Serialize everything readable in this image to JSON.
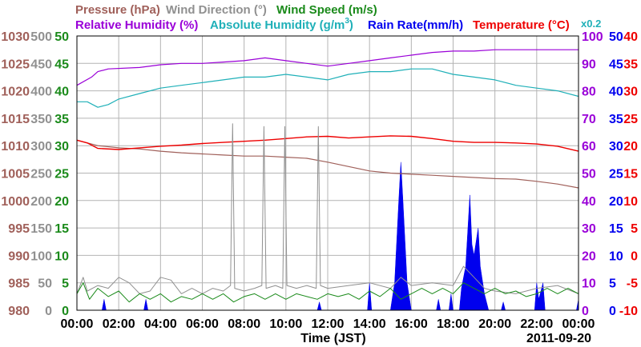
{
  "chart_data": {
    "type": "line",
    "xlabel": "Time (JST)",
    "date_label": "2011-09-20",
    "x_ticks": [
      "00:00",
      "02:00",
      "04:00",
      "06:00",
      "08:00",
      "10:00",
      "12:00",
      "14:00",
      "16:00",
      "18:00",
      "20:00",
      "22:00",
      "00:00"
    ],
    "x_range_hours": [
      0,
      24
    ],
    "colors": {
      "pressure": "#a0605a",
      "wind_direction": "#909090",
      "wind_speed": "#1a8a1a",
      "relative_humidity": "#9a00d8",
      "absolute_humidity": "#1fb0b8",
      "rain_rate": "#0000ee",
      "temperature": "#ee0000",
      "grid": "#b4b4b4"
    },
    "legend": {
      "pressure": "Pressure (hPa)",
      "wind_direction": "Wind Direction (°)",
      "wind_speed": "Wind Speed (m/s)",
      "relative_humidity": "Relative Humidity (%)",
      "absolute_humidity": "Absolute Humidity (g/m",
      "absolute_humidity_sup": "3",
      "absolute_humidity_end": ")",
      "rain_rate": "Rain Rate(mm/h)",
      "temperature": "Temperature (°C)",
      "rain_scale": "x0.2"
    },
    "axes": {
      "pressure": {
        "range": [
          980,
          1030
        ],
        "ticks": [
          "1030",
          "1025",
          "1020",
          "1015",
          "1010",
          "1005",
          "1000",
          "995",
          "990",
          "985",
          "980"
        ]
      },
      "wind_direction": {
        "range": [
          0,
          500
        ],
        "ticks": [
          "500",
          "450",
          "400",
          "350",
          "300",
          "250",
          "200",
          "150",
          "100",
          "50",
          "0"
        ]
      },
      "wind_speed": {
        "range": [
          0,
          50
        ],
        "ticks": [
          "50",
          "45",
          "40",
          "35",
          "30",
          "25",
          "20",
          "15",
          "10",
          "5",
          "0"
        ]
      },
      "humidity": {
        "range": [
          0,
          100
        ],
        "ticks": [
          "100",
          "90",
          "80",
          "70",
          "60",
          "50",
          "40",
          "30",
          "20",
          "10",
          "0"
        ]
      },
      "rain_rate": {
        "range": [
          0,
          50
        ],
        "ticks": [
          "50",
          "45",
          "40",
          "35",
          "30",
          "25",
          "20",
          "15",
          "10",
          "5",
          "0"
        ]
      },
      "temperature": {
        "range": [
          -10,
          40
        ],
        "ticks": [
          "40",
          "35",
          "30",
          "25",
          "20",
          "15",
          "10",
          "5",
          "0",
          "-5",
          "-10"
        ]
      }
    },
    "series": [
      {
        "name": "Pressure (hPa)",
        "axis": "pressure",
        "points": [
          [
            0,
            1011
          ],
          [
            1,
            1010
          ],
          [
            2,
            1009.6
          ],
          [
            3,
            1009.4
          ],
          [
            4,
            1009
          ],
          [
            5,
            1008.7
          ],
          [
            6,
            1008.5
          ],
          [
            7,
            1008.3
          ],
          [
            8,
            1008.1
          ],
          [
            9,
            1008.1
          ],
          [
            10,
            1007.9
          ],
          [
            11,
            1007.7
          ],
          [
            12,
            1007
          ],
          [
            13,
            1006.2
          ],
          [
            14,
            1005.4
          ],
          [
            15,
            1005
          ],
          [
            16,
            1004.8
          ],
          [
            17,
            1004.6
          ],
          [
            18,
            1004.4
          ],
          [
            19,
            1004.2
          ],
          [
            20,
            1004
          ],
          [
            21,
            1003.9
          ],
          [
            22,
            1003.5
          ],
          [
            23,
            1003
          ],
          [
            24,
            1002.3
          ]
        ]
      },
      {
        "name": "Temperature (°C)",
        "axis": "temperature",
        "points": [
          [
            0,
            21
          ],
          [
            0.5,
            20.5
          ],
          [
            1,
            19.5
          ],
          [
            2,
            19.3
          ],
          [
            3,
            19.6
          ],
          [
            4,
            19.9
          ],
          [
            5,
            20.1
          ],
          [
            6,
            20.4
          ],
          [
            7,
            20.6
          ],
          [
            8,
            20.8
          ],
          [
            9,
            21
          ],
          [
            10,
            21.3
          ],
          [
            11,
            21.6
          ],
          [
            12,
            21.7
          ],
          [
            13,
            21.4
          ],
          [
            14,
            21.6
          ],
          [
            15,
            21.8
          ],
          [
            16,
            21.7
          ],
          [
            17,
            21.3
          ],
          [
            18,
            20.8
          ],
          [
            19,
            20.6
          ],
          [
            20,
            20.6
          ],
          [
            21,
            20.5
          ],
          [
            22,
            20.3
          ],
          [
            23,
            19.9
          ],
          [
            24,
            19
          ]
        ]
      },
      {
        "name": "Relative Humidity (%)",
        "axis": "humidity",
        "points": [
          [
            0,
            82
          ],
          [
            0.7,
            85
          ],
          [
            1,
            87
          ],
          [
            1.5,
            88
          ],
          [
            3,
            88.5
          ],
          [
            4,
            89.5
          ],
          [
            5,
            90
          ],
          [
            6,
            90
          ],
          [
            7,
            90.5
          ],
          [
            8,
            91
          ],
          [
            9,
            92
          ],
          [
            10,
            91
          ],
          [
            11,
            90
          ],
          [
            12,
            89
          ],
          [
            13,
            90
          ],
          [
            14,
            91
          ],
          [
            15,
            92
          ],
          [
            16,
            93
          ],
          [
            17,
            94
          ],
          [
            18,
            94.5
          ],
          [
            19,
            94.5
          ],
          [
            20,
            95
          ],
          [
            21,
            95
          ],
          [
            22,
            95
          ],
          [
            23,
            95
          ],
          [
            24,
            95
          ]
        ]
      },
      {
        "name": "Absolute Humidity (g/m3)",
        "axis": "humidity",
        "points": [
          [
            0,
            76
          ],
          [
            0.5,
            76
          ],
          [
            1,
            74
          ],
          [
            1.5,
            75
          ],
          [
            2,
            77
          ],
          [
            3,
            79
          ],
          [
            4,
            81
          ],
          [
            5,
            82
          ],
          [
            6,
            83
          ],
          [
            7,
            84
          ],
          [
            8,
            85
          ],
          [
            9,
            85
          ],
          [
            10,
            86
          ],
          [
            11,
            85
          ],
          [
            12,
            84
          ],
          [
            13,
            86
          ],
          [
            14,
            87
          ],
          [
            15,
            87
          ],
          [
            16,
            88
          ],
          [
            17,
            88
          ],
          [
            18,
            86
          ],
          [
            19,
            85
          ],
          [
            20,
            84
          ],
          [
            21,
            82
          ],
          [
            22,
            81
          ],
          [
            23,
            80
          ],
          [
            24,
            78
          ]
        ]
      },
      {
        "name": "Wind Direction (°)",
        "axis": "wind_direction",
        "points": [
          [
            0,
            30
          ],
          [
            0.3,
            60
          ],
          [
            0.5,
            35
          ],
          [
            1,
            45
          ],
          [
            1.5,
            40
          ],
          [
            2,
            60
          ],
          [
            2.5,
            50
          ],
          [
            3,
            30
          ],
          [
            3.5,
            35
          ],
          [
            4,
            60
          ],
          [
            4.5,
            55
          ],
          [
            5,
            30
          ],
          [
            5.5,
            40
          ],
          [
            6,
            30
          ],
          [
            6.5,
            40
          ],
          [
            7,
            35
          ],
          [
            7.35,
            45
          ],
          [
            7.45,
            340
          ],
          [
            7.55,
            40
          ],
          [
            8,
            35
          ],
          [
            8.5,
            40
          ],
          [
            8.85,
            45
          ],
          [
            8.95,
            335
          ],
          [
            9.05,
            40
          ],
          [
            9.5,
            45
          ],
          [
            9.85,
            40
          ],
          [
            9.95,
            335
          ],
          [
            10.05,
            45
          ],
          [
            10.5,
            40
          ],
          [
            11,
            45
          ],
          [
            11.45,
            40
          ],
          [
            11.55,
            335
          ],
          [
            11.65,
            45
          ],
          [
            12,
            40
          ],
          [
            13,
            45
          ],
          [
            14,
            50
          ],
          [
            15,
            40
          ],
          [
            15.5,
            60
          ],
          [
            16,
            45
          ],
          [
            17,
            50
          ],
          [
            18,
            45
          ],
          [
            18.5,
            80
          ],
          [
            19,
            60
          ],
          [
            19.5,
            40
          ],
          [
            20,
            35
          ],
          [
            21,
            30
          ],
          [
            22,
            40
          ],
          [
            23,
            45
          ],
          [
            24,
            30
          ]
        ]
      },
      {
        "name": "Wind Speed (m/s)",
        "axis": "wind_speed",
        "points": [
          [
            0,
            3
          ],
          [
            0.3,
            5
          ],
          [
            0.6,
            2
          ],
          [
            1,
            4
          ],
          [
            1.5,
            2.5
          ],
          [
            2,
            3.5
          ],
          [
            2.5,
            1.5
          ],
          [
            3,
            3
          ],
          [
            3.5,
            2
          ],
          [
            4,
            3
          ],
          [
            4.5,
            1.5
          ],
          [
            5,
            2.5
          ],
          [
            5.5,
            2
          ],
          [
            6,
            3
          ],
          [
            6.5,
            2
          ],
          [
            7,
            3
          ],
          [
            7.5,
            1.5
          ],
          [
            8,
            2.5
          ],
          [
            8.5,
            3
          ],
          [
            9,
            2
          ],
          [
            9.5,
            3
          ],
          [
            10,
            2
          ],
          [
            10.5,
            3
          ],
          [
            11,
            2.5
          ],
          [
            11.5,
            2
          ],
          [
            12,
            3
          ],
          [
            12.5,
            2.5
          ],
          [
            13,
            3
          ],
          [
            13.5,
            2
          ],
          [
            14,
            3.5
          ],
          [
            14.5,
            2.5
          ],
          [
            15,
            4
          ],
          [
            15.5,
            2
          ],
          [
            16,
            3
          ],
          [
            16.5,
            4
          ],
          [
            17,
            3
          ],
          [
            17.5,
            4
          ],
          [
            18,
            3
          ],
          [
            18.5,
            5
          ],
          [
            19,
            4
          ],
          [
            19.5,
            3
          ],
          [
            20,
            4
          ],
          [
            20.5,
            3
          ],
          [
            21,
            3.5
          ],
          [
            21.5,
            2.5
          ],
          [
            22,
            3
          ],
          [
            22.5,
            4
          ],
          [
            23,
            3
          ],
          [
            23.5,
            4
          ],
          [
            24,
            3
          ]
        ]
      },
      {
        "name": "Rain Rate(mm/h)",
        "axis": "rain_rate",
        "points": [
          [
            0,
            0
          ],
          [
            1.2,
            0
          ],
          [
            1.3,
            2
          ],
          [
            1.4,
            0
          ],
          [
            3.2,
            0
          ],
          [
            3.3,
            2
          ],
          [
            3.4,
            0
          ],
          [
            11.5,
            0
          ],
          [
            11.6,
            1.5
          ],
          [
            11.7,
            0
          ],
          [
            13.9,
            0
          ],
          [
            14,
            5
          ],
          [
            14.1,
            0
          ],
          [
            15,
            0
          ],
          [
            15.2,
            5
          ],
          [
            15.4,
            20
          ],
          [
            15.5,
            27
          ],
          [
            15.6,
            20
          ],
          [
            15.8,
            5
          ],
          [
            16,
            0
          ],
          [
            17.2,
            0
          ],
          [
            17.3,
            2
          ],
          [
            17.4,
            0
          ],
          [
            17.8,
            0
          ],
          [
            17.9,
            3
          ],
          [
            18,
            0
          ],
          [
            18.3,
            0
          ],
          [
            18.4,
            4
          ],
          [
            18.6,
            8
          ],
          [
            18.8,
            21
          ],
          [
            18.9,
            12
          ],
          [
            19,
            10
          ],
          [
            19.2,
            15
          ],
          [
            19.3,
            8
          ],
          [
            19.5,
            3
          ],
          [
            19.7,
            0
          ],
          [
            20.3,
            0
          ],
          [
            20.4,
            1.5
          ],
          [
            20.5,
            0
          ],
          [
            21.9,
            0
          ],
          [
            22,
            5
          ],
          [
            22.1,
            2
          ],
          [
            22.3,
            5
          ],
          [
            22.4,
            0
          ],
          [
            23.9,
            0
          ],
          [
            24,
            2
          ]
        ]
      }
    ]
  }
}
